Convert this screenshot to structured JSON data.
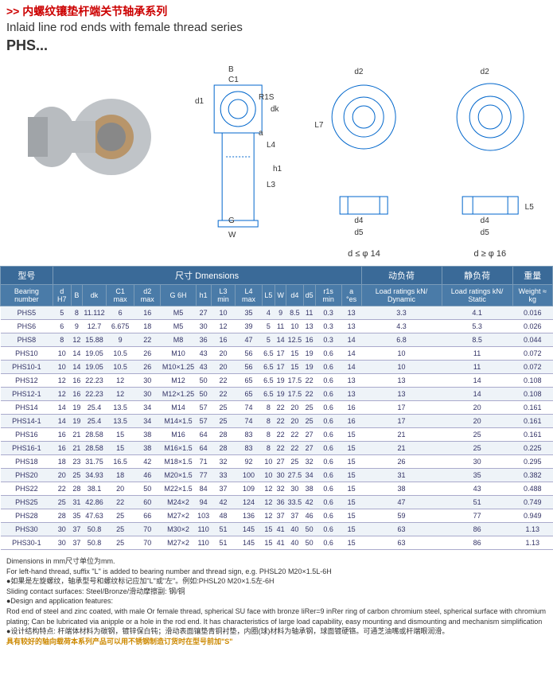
{
  "header": {
    "prefix": ">>",
    "cn_title": "内螺纹镶垫杆端关节轴承系列",
    "en_title": "Inlaid line rod ends with female thread series",
    "model": "PHS..."
  },
  "diagram_labels": {
    "top_labels": [
      "B",
      "C1",
      "d1",
      "R1S",
      "dk",
      "a",
      "G",
      "W"
    ],
    "mid_labels": [
      "d2",
      "L7",
      "d4",
      "d5"
    ],
    "right_labels": [
      "d2",
      "d4",
      "d5"
    ],
    "heights": [
      "L4",
      "h1",
      "L3",
      "L5"
    ],
    "dim_left": "d ≤ φ 14",
    "dim_right": "d ≥ φ 16"
  },
  "table": {
    "group_headers": {
      "model": "型号",
      "dimensions": "尺寸 Dmensions",
      "dynamic": "动负荷",
      "static": "静负荷",
      "weight": "重量"
    },
    "columns": [
      "Bearing number",
      "d H7",
      "B",
      "dk",
      "C1 max",
      "d2 max",
      "G 6H",
      "h1",
      "L3 min",
      "L4 max",
      "L5",
      "W",
      "d4",
      "d5",
      "r1s min",
      "a °es",
      "Load ratings kN/ Dynamic",
      "Load ratings kN/ Static",
      "Weight ≈ kg"
    ],
    "rows": [
      [
        "PHS5",
        "5",
        "8",
        "11.112",
        "6",
        "16",
        "M5",
        "27",
        "10",
        "35",
        "4",
        "9",
        "8.5",
        "11",
        "0.3",
        "13",
        "3.3",
        "4.1",
        "0.016"
      ],
      [
        "PHS6",
        "6",
        "9",
        "12.7",
        "6.675",
        "18",
        "M5",
        "30",
        "12",
        "39",
        "5",
        "11",
        "10",
        "13",
        "0.3",
        "13",
        "4.3",
        "5.3",
        "0.026"
      ],
      [
        "PHS8",
        "8",
        "12",
        "15.88",
        "9",
        "22",
        "M8",
        "36",
        "16",
        "47",
        "5",
        "14",
        "12.5",
        "16",
        "0.3",
        "14",
        "6.8",
        "8.5",
        "0.044"
      ],
      [
        "PHS10",
        "10",
        "14",
        "19.05",
        "10.5",
        "26",
        "M10",
        "43",
        "20",
        "56",
        "6.5",
        "17",
        "15",
        "19",
        "0.6",
        "14",
        "10",
        "11",
        "0.072"
      ],
      [
        "PHS10-1",
        "10",
        "14",
        "19.05",
        "10.5",
        "26",
        "M10×1.25",
        "43",
        "20",
        "56",
        "6.5",
        "17",
        "15",
        "19",
        "0.6",
        "14",
        "10",
        "11",
        "0.072"
      ],
      [
        "PHS12",
        "12",
        "16",
        "22.23",
        "12",
        "30",
        "M12",
        "50",
        "22",
        "65",
        "6.5",
        "19",
        "17.5",
        "22",
        "0.6",
        "13",
        "13",
        "14",
        "0.108"
      ],
      [
        "PHS12-1",
        "12",
        "16",
        "22.23",
        "12",
        "30",
        "M12×1.25",
        "50",
        "22",
        "65",
        "6.5",
        "19",
        "17.5",
        "22",
        "0.6",
        "13",
        "13",
        "14",
        "0.108"
      ],
      [
        "PHS14",
        "14",
        "19",
        "25.4",
        "13.5",
        "34",
        "M14",
        "57",
        "25",
        "74",
        "8",
        "22",
        "20",
        "25",
        "0.6",
        "16",
        "17",
        "20",
        "0.161"
      ],
      [
        "PHS14-1",
        "14",
        "19",
        "25.4",
        "13.5",
        "34",
        "M14×1.5",
        "57",
        "25",
        "74",
        "8",
        "22",
        "20",
        "25",
        "0.6",
        "16",
        "17",
        "20",
        "0.161"
      ],
      [
        "PHS16",
        "16",
        "21",
        "28.58",
        "15",
        "38",
        "M16",
        "64",
        "28",
        "83",
        "8",
        "22",
        "22",
        "27",
        "0.6",
        "15",
        "21",
        "25",
        "0.161"
      ],
      [
        "PHS16-1",
        "16",
        "21",
        "28.58",
        "15",
        "38",
        "M16×1.5",
        "64",
        "28",
        "83",
        "8",
        "22",
        "22",
        "27",
        "0.6",
        "15",
        "21",
        "25",
        "0.225"
      ],
      [
        "PHS18",
        "18",
        "23",
        "31.75",
        "16.5",
        "42",
        "M18×1.5",
        "71",
        "32",
        "92",
        "10",
        "27",
        "25",
        "32",
        "0.6",
        "15",
        "26",
        "30",
        "0.295"
      ],
      [
        "PHS20",
        "20",
        "25",
        "34.93",
        "18",
        "46",
        "M20×1.5",
        "77",
        "33",
        "100",
        "10",
        "30",
        "27.5",
        "34",
        "0.6",
        "15",
        "31",
        "35",
        "0.382"
      ],
      [
        "PHS22",
        "22",
        "28",
        "38.1",
        "20",
        "50",
        "M22×1.5",
        "84",
        "37",
        "109",
        "12",
        "32",
        "30",
        "38",
        "0.6",
        "15",
        "38",
        "43",
        "0.488"
      ],
      [
        "PHS25",
        "25",
        "31",
        "42.86",
        "22",
        "60",
        "M24×2",
        "94",
        "42",
        "124",
        "12",
        "36",
        "33.5",
        "42",
        "0.6",
        "15",
        "47",
        "51",
        "0.749"
      ],
      [
        "PHS28",
        "28",
        "35",
        "47.63",
        "25",
        "66",
        "M27×2",
        "103",
        "48",
        "136",
        "12",
        "37",
        "37",
        "46",
        "0.6",
        "15",
        "59",
        "77",
        "0.949"
      ],
      [
        "PHS30",
        "30",
        "37",
        "50.8",
        "25",
        "70",
        "M30×2",
        "110",
        "51",
        "145",
        "15",
        "41",
        "40",
        "50",
        "0.6",
        "15",
        "63",
        "86",
        "1.13"
      ],
      [
        "PHS30-1",
        "30",
        "37",
        "50.8",
        "25",
        "70",
        "M27×2",
        "110",
        "51",
        "145",
        "15",
        "41",
        "40",
        "50",
        "0.6",
        "15",
        "63",
        "86",
        "1.13"
      ]
    ],
    "styling": {
      "header_bg": "#4a7ba8",
      "header_color": "#ffffff",
      "row_odd_bg": "#eef3f8",
      "row_even_bg": "#ffffff",
      "text_color": "#336699",
      "font_size": 9
    }
  },
  "notes": {
    "line1": "Dimensions in mm尺寸单位为mm.",
    "line2": "For left-hand thread, suffix \"L\" is added to bearing number and thread sign, e.g. PHSL20 M20×1.5L-6H",
    "line3_cn": "●如果是左旋螺纹，轴承型号和螺纹标记应加\"L\"或\"左\"。例如:",
    "line3_ex": "PHSL20 M20×1.5左-6H",
    "line4": "Sliding contact surfaces: Steel/Bronze/滑动摩擦副: 钢/铜",
    "line5": "●Design and application features:",
    "line6": "Rod end of steel and zinc coated, with male Or female thread, spherical SU face with bronze liRer=9 inRer ring of carbon chromium steel, spherical surface with chromium plating; Can be lubricated via anipple or a hole in the rod end. It has characteristics of large load capability, easy mounting and dismounting and mechanism simplification",
    "line7_cn": "●设计结构特点: 杆端体材料为碳钢，镀锌保白钝；滑动表面镶垫青铜衬垫，内圈(球)材料为轴承钢，球面镀硬铬。可通芝油嘴或杆端眼润滑。",
    "line8_highlight": "具有较好的轴向载荷本系列产品可以用不锈钢制造订货时在型号前加\"S\""
  }
}
